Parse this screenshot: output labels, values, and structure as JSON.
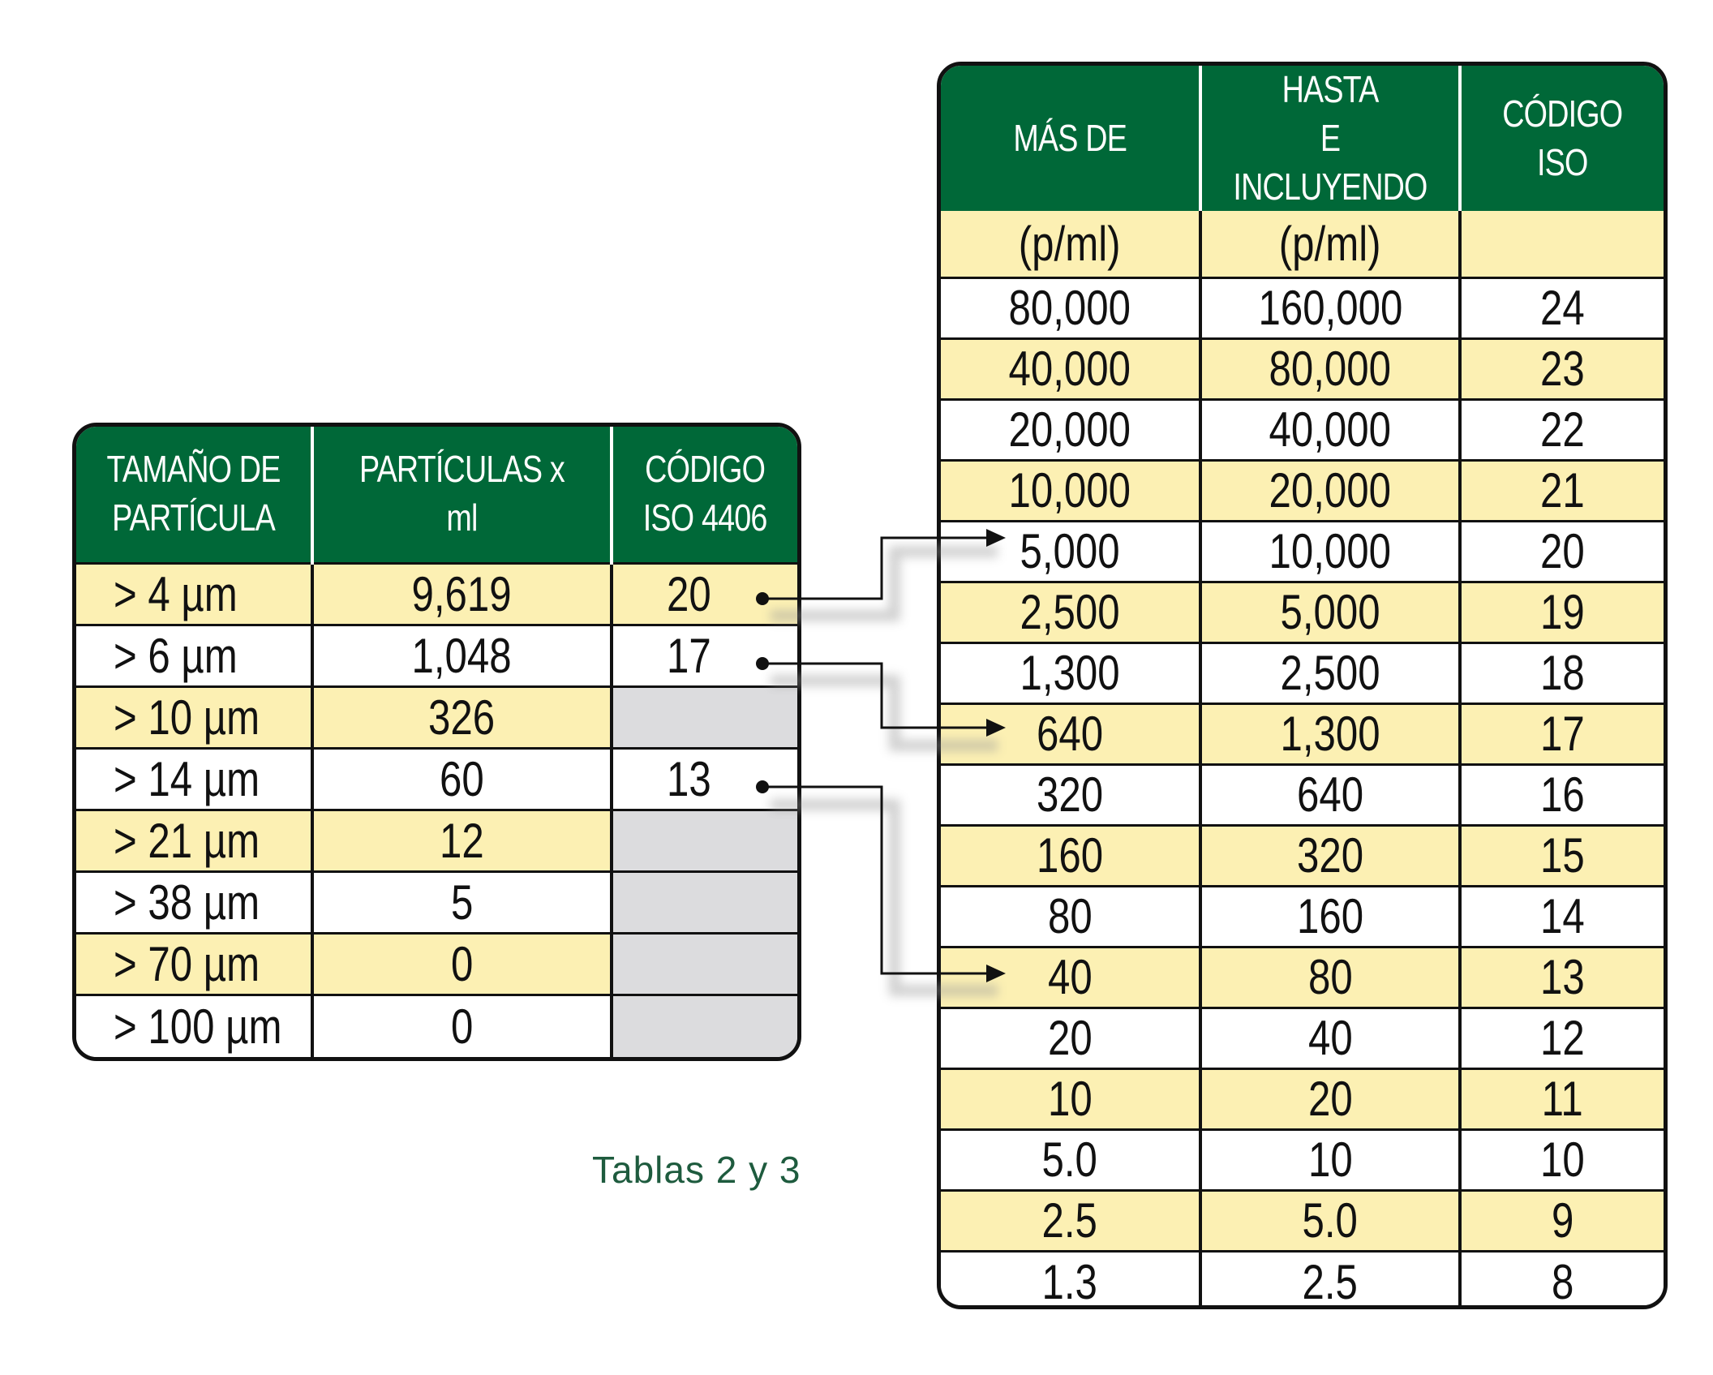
{
  "table2": {
    "headers": [
      "TAMAÑO DE\nPARTÍCULA",
      "PARTÍCULAS x ml",
      "CÓDIGO\nISO 4406"
    ],
    "rows": [
      {
        "size": "> 4 µm",
        "count": "9,619",
        "code": "20"
      },
      {
        "size": "> 6 µm",
        "count": "1,048",
        "code": "17"
      },
      {
        "size": "> 10 µm",
        "count": "326",
        "code": ""
      },
      {
        "size": "> 14 µm",
        "count": "60",
        "code": "13"
      },
      {
        "size": "> 21 µm",
        "count": "12",
        "code": ""
      },
      {
        "size": "> 38 µm",
        "count": "5",
        "code": ""
      },
      {
        "size": "> 70 µm",
        "count": "0",
        "code": ""
      },
      {
        "size": "> 100 µm",
        "count": "0",
        "code": ""
      }
    ]
  },
  "table3": {
    "headers": [
      "MÁS DE",
      "HASTA\nE INCLUYENDO",
      "CÓDIGO\nISO"
    ],
    "units": [
      "(p/ml)",
      "(p/ml)",
      ""
    ],
    "rows": [
      [
        "80,000",
        "160,000",
        "24"
      ],
      [
        "40,000",
        "80,000",
        "23"
      ],
      [
        "20,000",
        "40,000",
        "22"
      ],
      [
        "10,000",
        "20,000",
        "21"
      ],
      [
        "5,000",
        "10,000",
        "20"
      ],
      [
        "2,500",
        "5,000",
        "19"
      ],
      [
        "1,300",
        "2,500",
        "18"
      ],
      [
        "640",
        "1,300",
        "17"
      ],
      [
        "320",
        "640",
        "16"
      ],
      [
        "160",
        "320",
        "15"
      ],
      [
        "80",
        "160",
        "14"
      ],
      [
        "40",
        "80",
        "13"
      ],
      [
        "20",
        "40",
        "12"
      ],
      [
        "10",
        "20",
        "11"
      ],
      [
        "5.0",
        "10",
        "10"
      ],
      [
        "2.5",
        "5.0",
        "9"
      ],
      [
        "1.3",
        "2.5",
        "8"
      ]
    ]
  },
  "caption": "Tablas 2 y 3",
  "colors": {
    "header_green": "#006838",
    "row_yellow": "#fcf0b3",
    "empty_grey": "#dcdcde",
    "caption_green": "#1e5b3e"
  }
}
